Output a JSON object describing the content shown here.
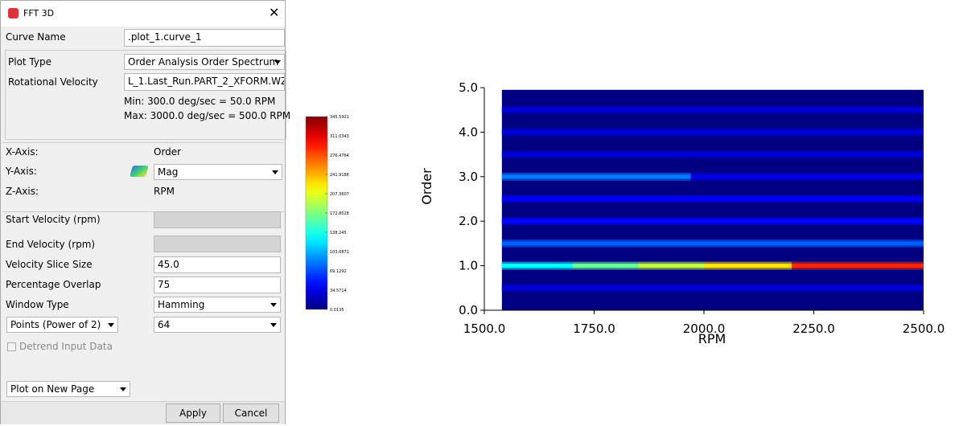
{
  "dialog": {
    "title": "FFT 3D",
    "curve_name": {
      "label": "Curve Name",
      "value": ".plot_1.curve_1"
    },
    "plot_type": {
      "label": "Plot Type",
      "value": "Order Analysis Order Spectrum"
    },
    "rotational_velocity": {
      "label": "Rotational Velocity",
      "value": "L_1.Last_Run.PART_2_XFORM.WZ",
      "min": "Min: 300.0 deg/sec = 50.0 RPM",
      "max": "Max: 3000.0 deg/sec = 500.0 RPM"
    },
    "axes": [
      {
        "label": "X-Axis:",
        "value": "Order"
      },
      {
        "label": "Y-Axis:",
        "value": "Mag"
      },
      {
        "label": "Z-Axis:",
        "value": "RPM"
      }
    ],
    "start_velocity": {
      "label": "Start Velocity (rpm)"
    },
    "end_velocity": {
      "label": "End Velocity (rpm)"
    },
    "velocity_slice_size": {
      "label": "Velocity Slice Size",
      "value": "45.0"
    },
    "percentage_overlap": {
      "label": "Percentage Overlap",
      "value": "75"
    },
    "window_type": {
      "label": "Window Type",
      "value": "Hamming"
    },
    "points": {
      "label": "Points (Power of 2)",
      "value": "64"
    },
    "detrend": "Detrend Input Data",
    "plot_on": "Plot on New Page",
    "buttons": [
      "Apply",
      "Cancel"
    ]
  },
  "chart_data": {
    "type": "heatmap",
    "xlabel": "RPM",
    "ylabel": "Order",
    "xlim": [
      1500,
      2500
    ],
    "ylim": [
      0,
      5
    ],
    "xticks": [
      {
        "value": 1500,
        "label": "1500.0"
      },
      {
        "value": 1750,
        "label": "1750.0"
      },
      {
        "value": 2000,
        "label": "2000.0"
      },
      {
        "value": 2250,
        "label": "2250.0"
      },
      {
        "value": 2500,
        "label": "2500.0"
      }
    ],
    "yticks": [
      {
        "value": 0,
        "label": "0.0"
      },
      {
        "value": 1,
        "label": "1.0"
      },
      {
        "value": 2,
        "label": "2.0"
      },
      {
        "value": 3,
        "label": "3.0"
      },
      {
        "value": 4,
        "label": "4.0"
      },
      {
        "value": 5,
        "label": "5.0"
      }
    ],
    "extent": {
      "x": [
        1540,
        2500
      ],
      "y": [
        0,
        4.95
      ]
    },
    "bands": [
      {
        "order": 0.5,
        "rpm_edges": [
          1540,
          2500
        ],
        "magnitude": [
          30
        ]
      },
      {
        "order": 1.0,
        "rpm_edges": [
          1540,
          1700,
          1850,
          2000,
          2200,
          2500
        ],
        "magnitude": [
          130,
          165,
          195,
          225,
          290
        ]
      },
      {
        "order": 1.5,
        "rpm_edges": [
          1540,
          2500
        ],
        "magnitude": [
          75
        ]
      },
      {
        "order": 2.0,
        "rpm_edges": [
          1540,
          2500
        ],
        "magnitude": [
          45
        ]
      },
      {
        "order": 2.5,
        "rpm_edges": [
          1540,
          2500
        ],
        "magnitude": [
          40
        ]
      },
      {
        "order": 3.0,
        "rpm_edges": [
          1540,
          1970,
          2500
        ],
        "magnitude": [
          85,
          35
        ]
      },
      {
        "order": 3.5,
        "rpm_edges": [
          1540,
          2500
        ],
        "magnitude": [
          30
        ]
      },
      {
        "order": 4.0,
        "rpm_edges": [
          1540,
          2500
        ],
        "magnitude": [
          30
        ]
      },
      {
        "order": 4.5,
        "rpm_edges": [
          1540,
          2500
        ],
        "magnitude": [
          30
        ]
      }
    ],
    "colorbar": {
      "zlim": [
        0.0135,
        345.5921
      ],
      "ticks": [
        0.0135,
        34.5714,
        69.1292,
        103.6871,
        138.245,
        172.8028,
        207.3607,
        241.9186,
        276.4764,
        311.0343,
        345.5921
      ]
    }
  }
}
